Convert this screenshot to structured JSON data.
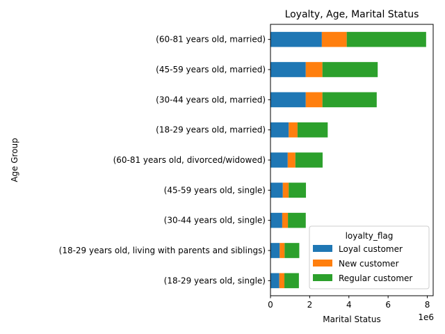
{
  "chart_data": {
    "type": "bar",
    "orientation": "horizontal",
    "stacked": true,
    "title": "Loyalty, Age, Marital Status",
    "xlabel": "Marital Status",
    "ylabel": "Age Group",
    "x_offset_label": "1e6",
    "xlim": [
      0,
      8.3
    ],
    "xticks": [
      "0",
      "2",
      "4",
      "6",
      "8"
    ],
    "grid": false,
    "categories": [
      "(18-29 years old, single)",
      "(18-29 years old, living with parents and siblings)",
      "(30-44 years old, single)",
      "(45-59 years old, single)",
      "(60-81 years old, divorced/widowed)",
      "(18-29 years old, married)",
      "(30-44 years old, married)",
      "(45-59 years old, married)",
      "(60-81 years old, married)"
    ],
    "series": [
      {
        "name": "Loyal customer",
        "color": "#1f77b4",
        "values": [
          0.45,
          0.47,
          0.6,
          0.63,
          0.88,
          0.93,
          1.8,
          1.8,
          2.62
        ]
      },
      {
        "name": "New customer",
        "color": "#ff7f0e",
        "values": [
          0.26,
          0.25,
          0.29,
          0.3,
          0.39,
          0.45,
          0.85,
          0.85,
          1.27
        ]
      },
      {
        "name": "Regular customer",
        "color": "#2ca02c",
        "values": [
          0.74,
          0.75,
          0.91,
          0.88,
          1.39,
          1.54,
          2.77,
          2.82,
          4.05
        ]
      }
    ],
    "legend": {
      "title": "loyalty_flag",
      "position": "lower-right"
    }
  }
}
